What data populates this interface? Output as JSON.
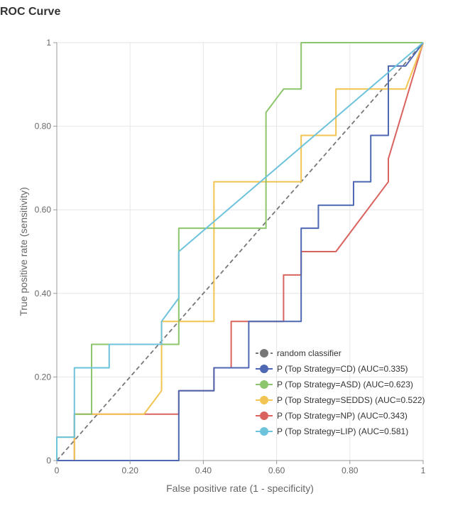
{
  "chart_data": {
    "type": "line",
    "title": "ROC Curve",
    "xlabel": "False positive rate (1 - specificity)",
    "ylabel": "True positive rate (sensitivity)",
    "xlim": [
      0,
      1
    ],
    "ylim": [
      0,
      1
    ],
    "grid": true,
    "legend_position": "bottom-right",
    "x_ticks": [
      "0",
      "0.20",
      "0.40",
      "0.60",
      "0.80",
      "1"
    ],
    "y_ticks": [
      "0",
      "0.20",
      "0.40",
      "0.60",
      "0.80",
      "1"
    ],
    "series": [
      {
        "name": "random classifier",
        "color": "#777777",
        "dashed": true,
        "x": [
          0,
          1
        ],
        "y": [
          0,
          1
        ]
      },
      {
        "name": "P (Top Strategy=CD) (AUC=0.335)",
        "color": "#4e68b4",
        "x": [
          0,
          0.333,
          0.333,
          0.429,
          0.429,
          0.476,
          0.476,
          0.524,
          0.524,
          0.667,
          0.667,
          0.714,
          0.714,
          0.81,
          0.81,
          0.857,
          0.857,
          0.905,
          0.905,
          0.952,
          1
        ],
        "y": [
          0,
          0,
          0.167,
          0.167,
          0.222,
          0.222,
          0.222,
          0.222,
          0.333,
          0.333,
          0.556,
          0.556,
          0.611,
          0.611,
          0.667,
          0.667,
          0.778,
          0.778,
          0.944,
          0.944,
          1
        ]
      },
      {
        "name": "P (Top Strategy=ASD) (AUC=0.623)",
        "color": "#8cc56c",
        "x": [
          0,
          0,
          0.048,
          0.048,
          0.095,
          0.095,
          0.333,
          0.333,
          0.571,
          0.571,
          0.619,
          0.667,
          0.667,
          1
        ],
        "y": [
          0,
          0.056,
          0.056,
          0.111,
          0.111,
          0.278,
          0.278,
          0.556,
          0.556,
          0.833,
          0.889,
          0.889,
          1,
          1
        ]
      },
      {
        "name": "P (Top Strategy=SEDDS) (AUC=0.522)",
        "color": "#f2c451",
        "x": [
          0,
          0.048,
          0.048,
          0.238,
          0.286,
          0.286,
          0.429,
          0.429,
          0.667,
          0.667,
          0.762,
          0.762,
          0.952,
          1
        ],
        "y": [
          0,
          0,
          0.111,
          0.111,
          0.167,
          0.333,
          0.333,
          0.667,
          0.667,
          0.778,
          0.778,
          0.889,
          0.889,
          1
        ]
      },
      {
        "name": "P (Top Strategy=NP) (AUC=0.343)",
        "color": "#d9635e",
        "x": [
          0,
          0.048,
          0.048,
          0.333,
          0.333,
          0.429,
          0.429,
          0.476,
          0.476,
          0.619,
          0.619,
          0.667,
          0.667,
          0.762,
          0.905,
          0.905,
          1
        ],
        "y": [
          0,
          0,
          0.111,
          0.111,
          0.167,
          0.167,
          0.222,
          0.222,
          0.333,
          0.333,
          0.444,
          0.444,
          0.5,
          0.5,
          0.667,
          0.722,
          1
        ]
      },
      {
        "name": "P (Top Strategy=LIP) (AUC=0.581)",
        "color": "#6ec3dc",
        "x": [
          0,
          0,
          0.048,
          0.048,
          0.143,
          0.143,
          0.286,
          0.286,
          0.333,
          0.333,
          1
        ],
        "y": [
          0,
          0.056,
          0.056,
          0.222,
          0.222,
          0.278,
          0.278,
          0.333,
          0.389,
          0.5,
          1
        ]
      }
    ]
  }
}
